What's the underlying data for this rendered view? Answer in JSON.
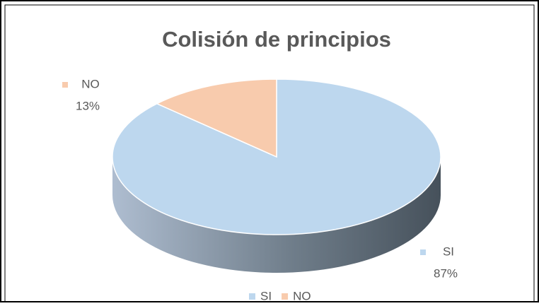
{
  "chart_data": {
    "type": "pie",
    "title": "Colisión de principios",
    "categories": [
      "SI",
      "NO"
    ],
    "values": [
      87,
      13
    ],
    "value_labels": [
      "87%",
      "13%"
    ],
    "colors": [
      "#bdd7ee",
      "#f8cbad"
    ],
    "legend": "bottom"
  }
}
